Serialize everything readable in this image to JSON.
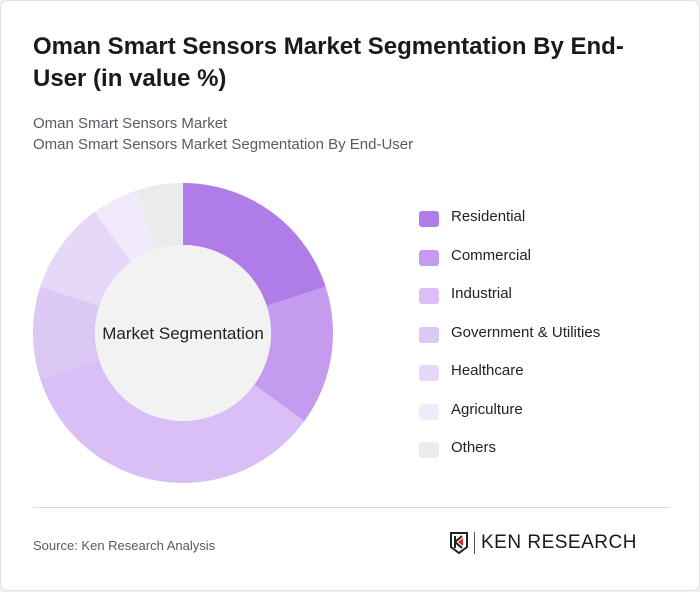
{
  "title": "Oman Smart Sensors Market Segmentation By End-User (in value %)",
  "subtitle_1": "Oman Smart Sensors Market",
  "subtitle_2": "Oman Smart Sensors Market Segmentation By End-User",
  "source": "Source: Ken Research Analysis",
  "logo_text": "KEN RESEARCH",
  "chart_data": {
    "type": "pie",
    "variant": "donut",
    "center_label": "Market Segmentation",
    "legend_position": "right",
    "categories": [
      "Residential",
      "Commercial",
      "Industrial",
      "Government & Utilities",
      "Healthcare",
      "Agriculture",
      "Others"
    ],
    "values": [
      20,
      15,
      35,
      10,
      10,
      5,
      5
    ],
    "colors": [
      "#b07ce8",
      "#c49bef",
      "#d9bff5",
      "#dcc8f5",
      "#e6d8f8",
      "#f1eafb",
      "#ebebeb"
    ]
  }
}
